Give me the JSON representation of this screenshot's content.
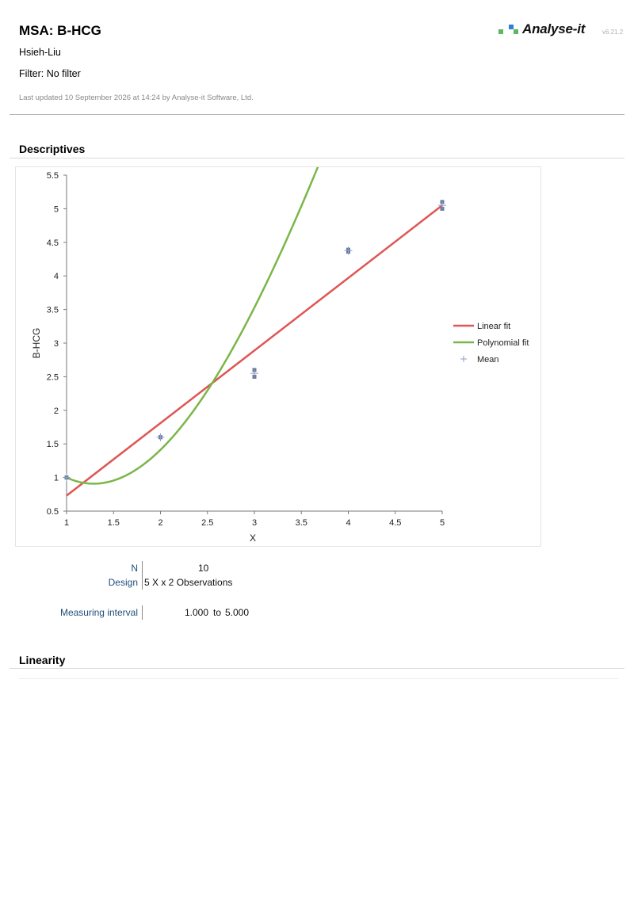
{
  "header": {
    "title": "MSA: B-HCG",
    "subtitle": "Hsieh-Liu",
    "filter": "Filter: No filter",
    "updated": "Last updated 10 September 2026 at 14:24 by Analyse-it Software, Ltd.",
    "logo_text": "Analyse-it",
    "version": "v6.21.2",
    "logo_colors": [
      "#5cb85c",
      "#2f7ed8"
    ]
  },
  "sections": {
    "descriptives": "Descriptives",
    "linearity": "Linearity"
  },
  "chart_data": {
    "type": "scatter",
    "xlabel": "X",
    "ylabel": "B-HCG",
    "xlim": [
      1,
      5
    ],
    "ylim": [
      0.5,
      5.5
    ],
    "x_ticks": [
      "1",
      "1.5",
      "2",
      "2.5",
      "3",
      "3.5",
      "4",
      "4.5",
      "5"
    ],
    "y_ticks": [
      "0.5",
      "1",
      "1.5",
      "2",
      "2.5",
      "3",
      "3.5",
      "4",
      "4.5",
      "5",
      "5.5"
    ],
    "grid": false,
    "legend_position": "right",
    "observations": {
      "color": "#6b7a99",
      "points": [
        {
          "x": 1,
          "y": 1.0
        },
        {
          "x": 1,
          "y": 1.0
        },
        {
          "x": 2,
          "y": 1.6
        },
        {
          "x": 2,
          "y": 1.6
        },
        {
          "x": 3,
          "y": 2.6
        },
        {
          "x": 3,
          "y": 2.5
        },
        {
          "x": 4,
          "y": 4.36
        },
        {
          "x": 4,
          "y": 4.39
        },
        {
          "x": 5,
          "y": 5.1
        },
        {
          "x": 5,
          "y": 5.0
        }
      ]
    },
    "means": [
      {
        "x": 1,
        "y": 1.0
      },
      {
        "x": 2,
        "y": 1.6
      },
      {
        "x": 3,
        "y": 2.55
      },
      {
        "x": 4,
        "y": 4.375
      },
      {
        "x": 5,
        "y": 5.05
      }
    ],
    "series": [
      {
        "name": "Linear fit",
        "color": "#e05555",
        "kind": "linear",
        "coefficients": [
          -0.35,
          1.08
        ]
      },
      {
        "name": "Polynomial fit",
        "color": "#7ab648",
        "kind": "polynomial",
        "coefficients": [
          2.89,
          -3.243,
          1.452,
          -0.1
        ]
      },
      {
        "name": "Mean",
        "color": "#6b7a99",
        "kind": "marker"
      }
    ]
  },
  "stats": {
    "n_label": "N",
    "n_value": "10",
    "design_label": "Design",
    "design_value": "5 X x 2 Observations",
    "interval_label": "Measuring interval",
    "interval_low": "1.000",
    "interval_to": "to",
    "interval_high": "5.000"
  }
}
